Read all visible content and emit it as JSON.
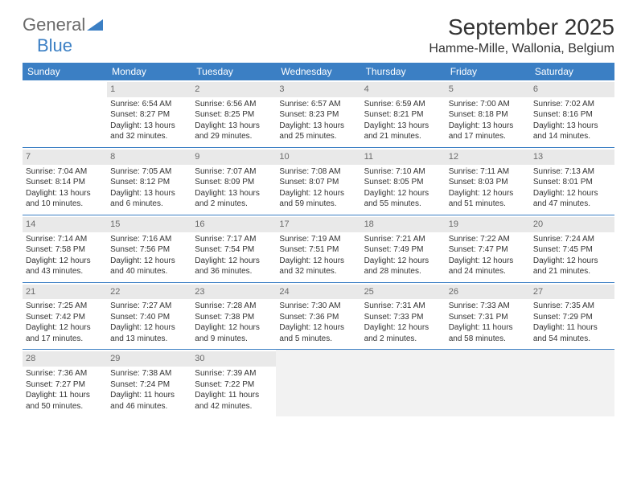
{
  "logo": {
    "text1": "General",
    "text2": "Blue"
  },
  "title": "September 2025",
  "location": "Hamme-Mille, Wallonia, Belgium",
  "header_color": "#3b7fc4",
  "daynum_bg": "#e9e9e9",
  "columns": [
    "Sunday",
    "Monday",
    "Tuesday",
    "Wednesday",
    "Thursday",
    "Friday",
    "Saturday"
  ],
  "weeks": [
    [
      {
        "n": "",
        "sr": "",
        "ss": "",
        "d1": "",
        "d2": ""
      },
      {
        "n": "1",
        "sr": "Sunrise: 6:54 AM",
        "ss": "Sunset: 8:27 PM",
        "d1": "Daylight: 13 hours",
        "d2": "and 32 minutes."
      },
      {
        "n": "2",
        "sr": "Sunrise: 6:56 AM",
        "ss": "Sunset: 8:25 PM",
        "d1": "Daylight: 13 hours",
        "d2": "and 29 minutes."
      },
      {
        "n": "3",
        "sr": "Sunrise: 6:57 AM",
        "ss": "Sunset: 8:23 PM",
        "d1": "Daylight: 13 hours",
        "d2": "and 25 minutes."
      },
      {
        "n": "4",
        "sr": "Sunrise: 6:59 AM",
        "ss": "Sunset: 8:21 PM",
        "d1": "Daylight: 13 hours",
        "d2": "and 21 minutes."
      },
      {
        "n": "5",
        "sr": "Sunrise: 7:00 AM",
        "ss": "Sunset: 8:18 PM",
        "d1": "Daylight: 13 hours",
        "d2": "and 17 minutes."
      },
      {
        "n": "6",
        "sr": "Sunrise: 7:02 AM",
        "ss": "Sunset: 8:16 PM",
        "d1": "Daylight: 13 hours",
        "d2": "and 14 minutes."
      }
    ],
    [
      {
        "n": "7",
        "sr": "Sunrise: 7:04 AM",
        "ss": "Sunset: 8:14 PM",
        "d1": "Daylight: 13 hours",
        "d2": "and 10 minutes."
      },
      {
        "n": "8",
        "sr": "Sunrise: 7:05 AM",
        "ss": "Sunset: 8:12 PM",
        "d1": "Daylight: 13 hours",
        "d2": "and 6 minutes."
      },
      {
        "n": "9",
        "sr": "Sunrise: 7:07 AM",
        "ss": "Sunset: 8:09 PM",
        "d1": "Daylight: 13 hours",
        "d2": "and 2 minutes."
      },
      {
        "n": "10",
        "sr": "Sunrise: 7:08 AM",
        "ss": "Sunset: 8:07 PM",
        "d1": "Daylight: 12 hours",
        "d2": "and 59 minutes."
      },
      {
        "n": "11",
        "sr": "Sunrise: 7:10 AM",
        "ss": "Sunset: 8:05 PM",
        "d1": "Daylight: 12 hours",
        "d2": "and 55 minutes."
      },
      {
        "n": "12",
        "sr": "Sunrise: 7:11 AM",
        "ss": "Sunset: 8:03 PM",
        "d1": "Daylight: 12 hours",
        "d2": "and 51 minutes."
      },
      {
        "n": "13",
        "sr": "Sunrise: 7:13 AM",
        "ss": "Sunset: 8:01 PM",
        "d1": "Daylight: 12 hours",
        "d2": "and 47 minutes."
      }
    ],
    [
      {
        "n": "14",
        "sr": "Sunrise: 7:14 AM",
        "ss": "Sunset: 7:58 PM",
        "d1": "Daylight: 12 hours",
        "d2": "and 43 minutes."
      },
      {
        "n": "15",
        "sr": "Sunrise: 7:16 AM",
        "ss": "Sunset: 7:56 PM",
        "d1": "Daylight: 12 hours",
        "d2": "and 40 minutes."
      },
      {
        "n": "16",
        "sr": "Sunrise: 7:17 AM",
        "ss": "Sunset: 7:54 PM",
        "d1": "Daylight: 12 hours",
        "d2": "and 36 minutes."
      },
      {
        "n": "17",
        "sr": "Sunrise: 7:19 AM",
        "ss": "Sunset: 7:51 PM",
        "d1": "Daylight: 12 hours",
        "d2": "and 32 minutes."
      },
      {
        "n": "18",
        "sr": "Sunrise: 7:21 AM",
        "ss": "Sunset: 7:49 PM",
        "d1": "Daylight: 12 hours",
        "d2": "and 28 minutes."
      },
      {
        "n": "19",
        "sr": "Sunrise: 7:22 AM",
        "ss": "Sunset: 7:47 PM",
        "d1": "Daylight: 12 hours",
        "d2": "and 24 minutes."
      },
      {
        "n": "20",
        "sr": "Sunrise: 7:24 AM",
        "ss": "Sunset: 7:45 PM",
        "d1": "Daylight: 12 hours",
        "d2": "and 21 minutes."
      }
    ],
    [
      {
        "n": "21",
        "sr": "Sunrise: 7:25 AM",
        "ss": "Sunset: 7:42 PM",
        "d1": "Daylight: 12 hours",
        "d2": "and 17 minutes."
      },
      {
        "n": "22",
        "sr": "Sunrise: 7:27 AM",
        "ss": "Sunset: 7:40 PM",
        "d1": "Daylight: 12 hours",
        "d2": "and 13 minutes."
      },
      {
        "n": "23",
        "sr": "Sunrise: 7:28 AM",
        "ss": "Sunset: 7:38 PM",
        "d1": "Daylight: 12 hours",
        "d2": "and 9 minutes."
      },
      {
        "n": "24",
        "sr": "Sunrise: 7:30 AM",
        "ss": "Sunset: 7:36 PM",
        "d1": "Daylight: 12 hours",
        "d2": "and 5 minutes."
      },
      {
        "n": "25",
        "sr": "Sunrise: 7:31 AM",
        "ss": "Sunset: 7:33 PM",
        "d1": "Daylight: 12 hours",
        "d2": "and 2 minutes."
      },
      {
        "n": "26",
        "sr": "Sunrise: 7:33 AM",
        "ss": "Sunset: 7:31 PM",
        "d1": "Daylight: 11 hours",
        "d2": "and 58 minutes."
      },
      {
        "n": "27",
        "sr": "Sunrise: 7:35 AM",
        "ss": "Sunset: 7:29 PM",
        "d1": "Daylight: 11 hours",
        "d2": "and 54 minutes."
      }
    ],
    [
      {
        "n": "28",
        "sr": "Sunrise: 7:36 AM",
        "ss": "Sunset: 7:27 PM",
        "d1": "Daylight: 11 hours",
        "d2": "and 50 minutes."
      },
      {
        "n": "29",
        "sr": "Sunrise: 7:38 AM",
        "ss": "Sunset: 7:24 PM",
        "d1": "Daylight: 11 hours",
        "d2": "and 46 minutes."
      },
      {
        "n": "30",
        "sr": "Sunrise: 7:39 AM",
        "ss": "Sunset: 7:22 PM",
        "d1": "Daylight: 11 hours",
        "d2": "and 42 minutes."
      },
      {
        "n": "",
        "sr": "",
        "ss": "",
        "d1": "",
        "d2": "",
        "trailing": true
      },
      {
        "n": "",
        "sr": "",
        "ss": "",
        "d1": "",
        "d2": "",
        "trailing": true
      },
      {
        "n": "",
        "sr": "",
        "ss": "",
        "d1": "",
        "d2": "",
        "trailing": true
      },
      {
        "n": "",
        "sr": "",
        "ss": "",
        "d1": "",
        "d2": "",
        "trailing": true
      }
    ]
  ]
}
